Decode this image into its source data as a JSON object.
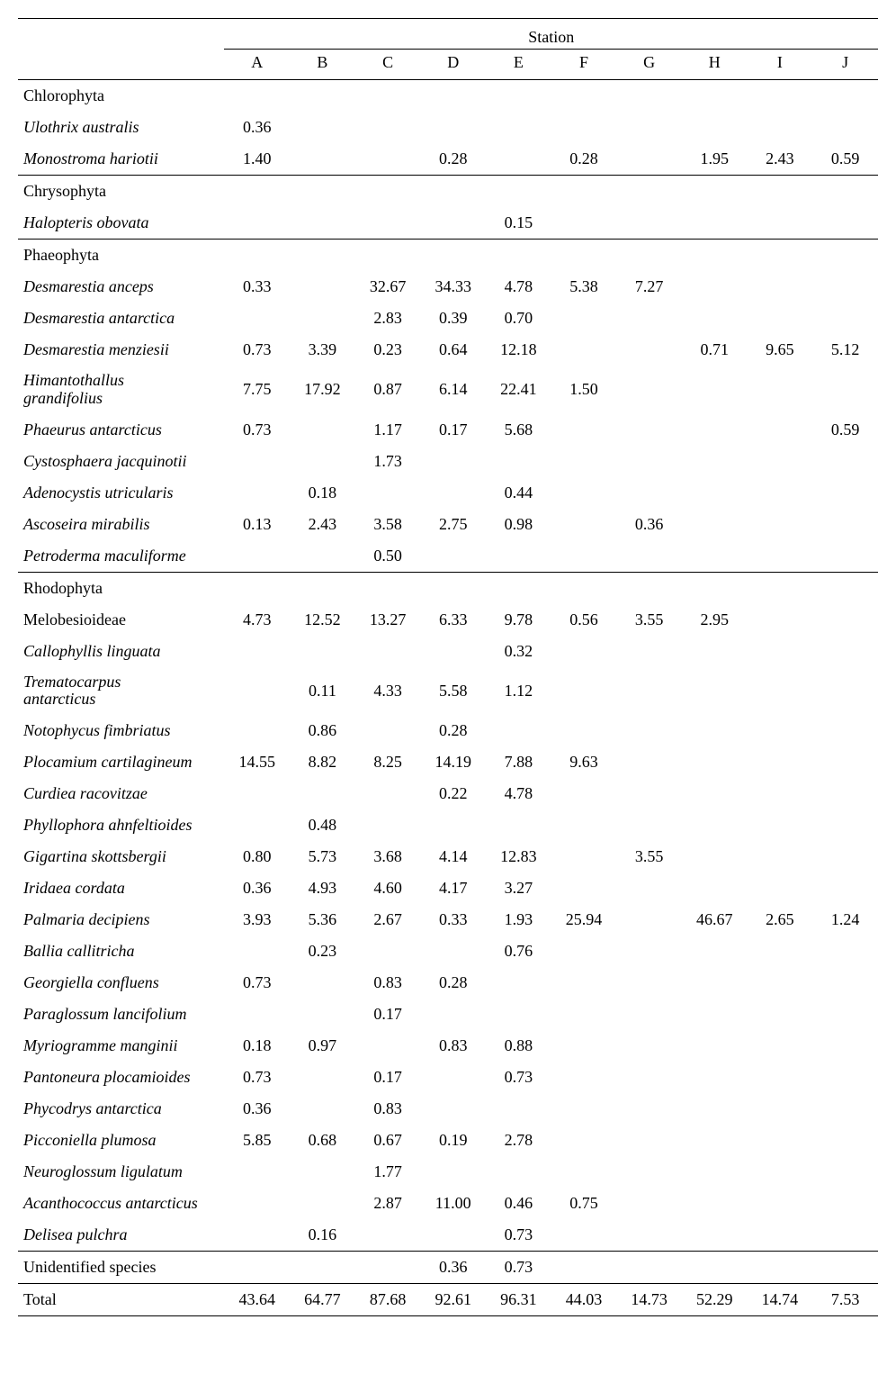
{
  "header": {
    "group_label": "Station",
    "columns": [
      "A",
      "B",
      "C",
      "D",
      "E",
      "F",
      "G",
      "H",
      "I",
      "J"
    ]
  },
  "sections": [
    {
      "group": "Chlorophyta",
      "rows": [
        {
          "name": "Ulothrix australis",
          "vals": [
            "0.36",
            "",
            "",
            "",
            "",
            "",
            "",
            "",
            "",
            ""
          ]
        },
        {
          "name": "Monostroma hariotii",
          "vals": [
            "1.40",
            "",
            "",
            "0.28",
            "",
            "0.28",
            "",
            "1.95",
            "2.43",
            "0.59"
          ]
        }
      ]
    },
    {
      "group": "Chrysophyta",
      "rows": [
        {
          "name": "Halopteris obovata",
          "vals": [
            "",
            "",
            "",
            "",
            "0.15",
            "",
            "",
            "",
            "",
            ""
          ]
        }
      ]
    },
    {
      "group": "Phaeophyta",
      "rows": [
        {
          "name": "Desmarestia anceps",
          "vals": [
            "0.33",
            "",
            "32.67",
            "34.33",
            "4.78",
            "5.38",
            "7.27",
            "",
            "",
            ""
          ]
        },
        {
          "name": "Desmarestia antarctica",
          "vals": [
            "",
            "",
            "2.83",
            "0.39",
            "0.70",
            "",
            "",
            "",
            "",
            ""
          ]
        },
        {
          "name": "Desmarestia menziesii",
          "vals": [
            "0.73",
            "3.39",
            "0.23",
            "0.64",
            "12.18",
            "",
            "",
            "0.71",
            "9.65",
            "5.12"
          ]
        },
        {
          "name": "Himantothallus grandifolius",
          "twoline": true,
          "vals": [
            "7.75",
            "17.92",
            "0.87",
            "6.14",
            "22.41",
            "1.50",
            "",
            "",
            "",
            ""
          ]
        },
        {
          "name": "Phaeurus antarcticus",
          "vals": [
            "0.73",
            "",
            "1.17",
            "0.17",
            "5.68",
            "",
            "",
            "",
            "",
            "0.59"
          ]
        },
        {
          "name": "Cystosphaera jacquinotii",
          "vals": [
            "",
            "",
            "1.73",
            "",
            "",
            "",
            "",
            "",
            "",
            ""
          ]
        },
        {
          "name": "Adenocystis utricularis",
          "vals": [
            "",
            "0.18",
            "",
            "",
            "0.44",
            "",
            "",
            "",
            "",
            ""
          ]
        },
        {
          "name": "Ascoseira mirabilis",
          "vals": [
            "0.13",
            "2.43",
            "3.58",
            "2.75",
            "0.98",
            "",
            "0.36",
            "",
            "",
            ""
          ]
        },
        {
          "name": "Petroderma maculiforme",
          "vals": [
            "",
            "",
            "0.50",
            "",
            "",
            "",
            "",
            "",
            "",
            ""
          ]
        }
      ]
    },
    {
      "group": "Rhodophyta",
      "rows": [
        {
          "name": "Melobesioideae",
          "italic": false,
          "vals": [
            "4.73",
            "12.52",
            "13.27",
            "6.33",
            "9.78",
            "0.56",
            "3.55",
            "2.95",
            "",
            ""
          ]
        },
        {
          "name": "Callophyllis linguata",
          "vals": [
            "",
            "",
            "",
            "",
            "0.32",
            "",
            "",
            "",
            "",
            ""
          ]
        },
        {
          "name": "Trematocarpus antarcticus",
          "twoline": true,
          "vals": [
            "",
            "0.11",
            "4.33",
            "5.58",
            "1.12",
            "",
            "",
            "",
            "",
            ""
          ]
        },
        {
          "name": "Notophycus fimbriatus",
          "vals": [
            "",
            "0.86",
            "",
            "0.28",
            "",
            "",
            "",
            "",
            "",
            ""
          ]
        },
        {
          "name": "Plocamium cartilagineum",
          "vals": [
            "14.55",
            "8.82",
            "8.25",
            "14.19",
            "7.88",
            "9.63",
            "",
            "",
            "",
            ""
          ]
        },
        {
          "name": "Curdiea racovitzae",
          "vals": [
            "",
            "",
            "",
            "0.22",
            "4.78",
            "",
            "",
            "",
            "",
            ""
          ]
        },
        {
          "name": "Phyllophora ahnfeltioides",
          "vals": [
            "",
            "0.48",
            "",
            "",
            "",
            "",
            "",
            "",
            "",
            ""
          ]
        },
        {
          "name": "Gigartina skottsbergii",
          "vals": [
            "0.80",
            "5.73",
            "3.68",
            "4.14",
            "12.83",
            "",
            "3.55",
            "",
            "",
            ""
          ]
        },
        {
          "name": "Iridaea cordata",
          "vals": [
            "0.36",
            "4.93",
            "4.60",
            "4.17",
            "3.27",
            "",
            "",
            "",
            "",
            ""
          ]
        },
        {
          "name": "Palmaria decipiens",
          "vals": [
            "3.93",
            "5.36",
            "2.67",
            "0.33",
            "1.93",
            "25.94",
            "",
            "46.67",
            "2.65",
            "1.24"
          ]
        },
        {
          "name": "Ballia callitricha",
          "vals": [
            "",
            "0.23",
            "",
            "",
            "0.76",
            "",
            "",
            "",
            "",
            ""
          ]
        },
        {
          "name": "Georgiella confluens",
          "vals": [
            "0.73",
            "",
            "0.83",
            "0.28",
            "",
            "",
            "",
            "",
            "",
            ""
          ]
        },
        {
          "name": "Paraglossum lancifolium",
          "vals": [
            "",
            "",
            "0.17",
            "",
            "",
            "",
            "",
            "",
            "",
            ""
          ]
        },
        {
          "name": "Myriogramme manginii",
          "vals": [
            "0.18",
            "0.97",
            "",
            "0.83",
            "0.88",
            "",
            "",
            "",
            "",
            ""
          ]
        },
        {
          "name": "Pantoneura plocamioides",
          "vals": [
            "0.73",
            "",
            "0.17",
            "",
            "0.73",
            "",
            "",
            "",
            "",
            ""
          ]
        },
        {
          "name": "Phycodrys antarctica",
          "vals": [
            "0.36",
            "",
            "0.83",
            "",
            "",
            "",
            "",
            "",
            "",
            ""
          ]
        },
        {
          "name": "Picconiella plumosa",
          "vals": [
            "5.85",
            "0.68",
            "0.67",
            "0.19",
            "2.78",
            "",
            "",
            "",
            "",
            ""
          ]
        },
        {
          "name": "Neuroglossum ligulatum",
          "vals": [
            "",
            "",
            "1.77",
            "",
            "",
            "",
            "",
            "",
            "",
            ""
          ]
        },
        {
          "name": "Acanthococcus antarcticus",
          "vals": [
            "",
            "",
            "2.87",
            "11.00",
            "0.46",
            "0.75",
            "",
            "",
            "",
            ""
          ]
        },
        {
          "name": "Delisea pulchra",
          "vals": [
            "",
            "0.16",
            "",
            "",
            "0.73",
            "",
            "",
            "",
            "",
            ""
          ]
        }
      ]
    }
  ],
  "footer_rows": [
    {
      "name": "Unidentified species",
      "italic": false,
      "vals": [
        "",
        "",
        "",
        "0.36",
        "0.73",
        "",
        "",
        "",
        "",
        ""
      ]
    },
    {
      "name": "Total",
      "italic": false,
      "vals": [
        "43.64",
        "64.77",
        "87.68",
        "92.61",
        "96.31",
        "44.03",
        "14.73",
        "52.29",
        "14.74",
        "7.53"
      ]
    }
  ]
}
